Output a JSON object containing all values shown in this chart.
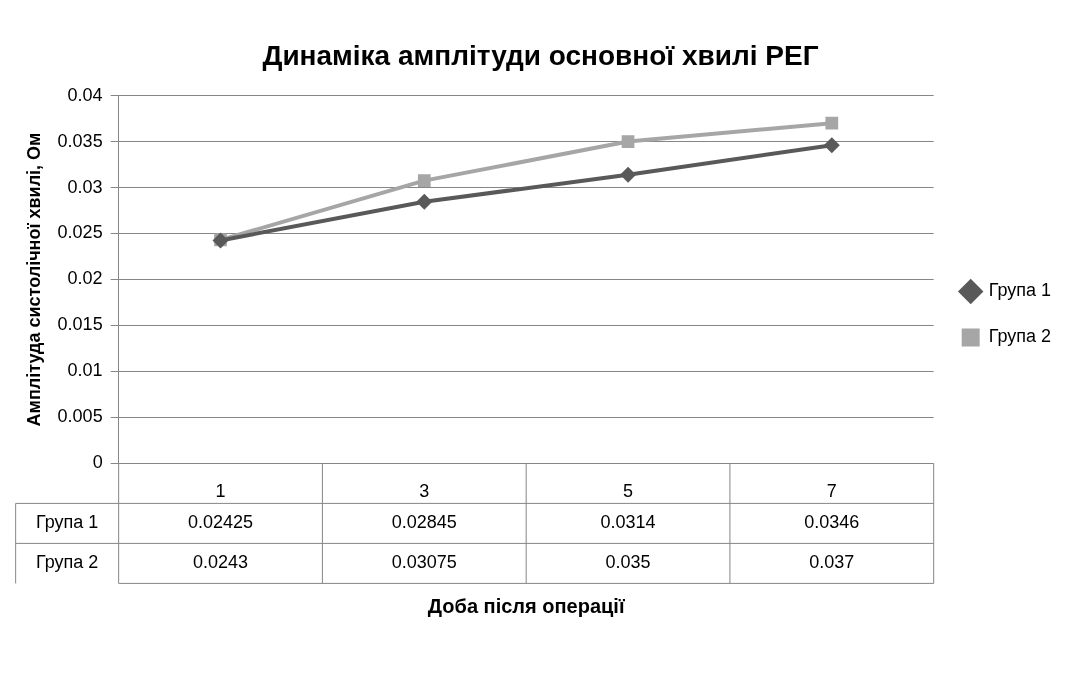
{
  "chart_data": {
    "type": "line",
    "title": "Динаміка амплітуди основної хвилі РЕГ",
    "xlabel": "Доба після операції",
    "ylabel": "Амплітуда систолічної хвилі, Ом",
    "categories": [
      "1",
      "3",
      "5",
      "7"
    ],
    "series": [
      {
        "name": "Група 1",
        "color": "#595959",
        "marker": "diamond",
        "values": [
          0.02425,
          0.02845,
          0.0314,
          0.0346
        ]
      },
      {
        "name": "Група 2",
        "color": "#a6a6a6",
        "marker": "square",
        "values": [
          0.0243,
          0.03075,
          0.035,
          0.037
        ]
      }
    ],
    "ylim": [
      0,
      0.04
    ],
    "yticks": [
      0,
      0.005,
      0.01,
      0.015,
      0.02,
      0.025,
      0.03,
      0.035,
      0.04
    ],
    "grid": "y",
    "legend": "right",
    "data_labels": true
  }
}
